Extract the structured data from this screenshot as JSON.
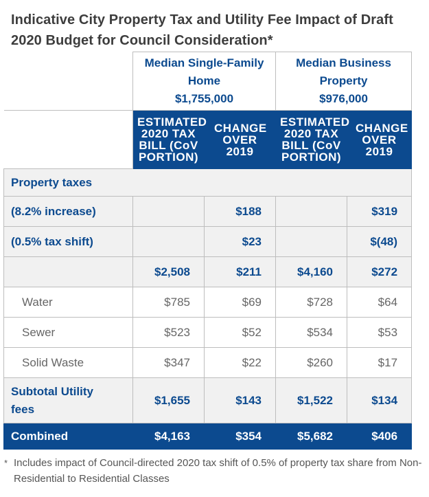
{
  "title": "Indicative City Property Tax and Utility Fee Impact of Draft 2020 Budget for Council Consideration*",
  "columns": {
    "home": {
      "label": "Median Single-Family Home",
      "value": "$1,755,000"
    },
    "business": {
      "label": "Median Business Property",
      "value": "$976,000"
    },
    "est_label": "ESTIMATED 2020 TAX BILL (CoV PORTION)",
    "change_label": "CHANGE OVER 2019"
  },
  "rows": {
    "property_taxes": {
      "label": "Property taxes"
    },
    "increase": {
      "label": "(8.2% increase)",
      "home_change": "$188",
      "biz_change": "$319"
    },
    "shift": {
      "label": "(0.5% tax shift)",
      "home_change": "$23",
      "biz_change": "$(48)"
    },
    "total": {
      "home_bill": "$2,508",
      "home_change": "$211",
      "biz_bill": "$4,160",
      "biz_change": "$272"
    },
    "water": {
      "label": "Water",
      "home_bill": "$785",
      "home_change": "$69",
      "biz_bill": "$728",
      "biz_change": "$64"
    },
    "sewer": {
      "label": "Sewer",
      "home_bill": "$523",
      "home_change": "$52",
      "biz_bill": "$534",
      "biz_change": "$53"
    },
    "solid_waste": {
      "label": "Solid Waste",
      "home_bill": "$347",
      "home_change": "$22",
      "biz_bill": "$260",
      "biz_change": "$17"
    },
    "subtotal": {
      "label": "Subtotal Utility fees",
      "home_bill": "$1,655",
      "home_change": "$143",
      "biz_bill": "$1,522",
      "biz_change": "$134"
    },
    "combined": {
      "label": "Combined",
      "home_bill": "$4,163",
      "home_change": "$354",
      "biz_bill": "$5,682",
      "biz_change": "$406"
    }
  },
  "footnote": {
    "marker": "*",
    "text": "Includes impact of Council-directed 2020 tax shift of 0.5% of property tax share from Non-Residential to Residential Classes"
  }
}
